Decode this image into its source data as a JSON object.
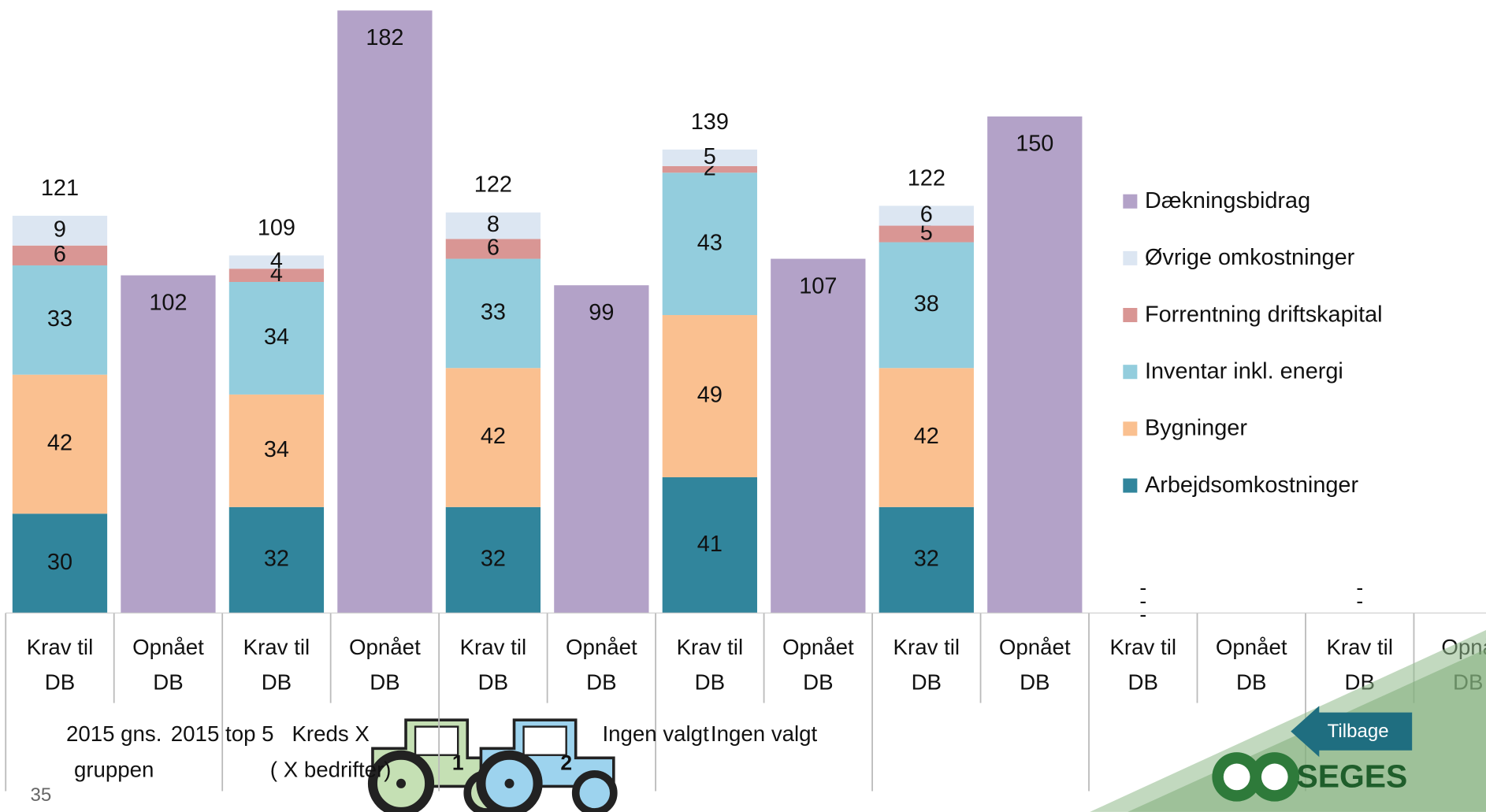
{
  "chart_data": {
    "type": "bar",
    "stacked": true,
    "categories": [
      "Krav til DB",
      "Opnået DB",
      "Krav til DB",
      "Opnået DB",
      "Krav til DB",
      "Opnået DB",
      "Krav til DB",
      "Opnået DB",
      "Krav til DB",
      "Opnået DB",
      "Krav til DB",
      "Opnået DB",
      "Krav til DB",
      "Opnå DB"
    ],
    "series": [
      {
        "name": "Arbejdsomkostninger",
        "color": "#31859c",
        "values": [
          30,
          null,
          32,
          null,
          32,
          null,
          41,
          null,
          32,
          null,
          null,
          null,
          null,
          null
        ],
        "value_labels": [
          null,
          null,
          null,
          null,
          null,
          null,
          null,
          null,
          null,
          null,
          "-",
          null,
          "-",
          null
        ]
      },
      {
        "name": "Bygninger",
        "color": "#fac090",
        "values": [
          42,
          null,
          34,
          null,
          42,
          null,
          49,
          null,
          42,
          null,
          null,
          null,
          null,
          null
        ],
        "value_labels": [
          null,
          null,
          null,
          null,
          null,
          null,
          null,
          null,
          null,
          null,
          "-",
          null,
          "-",
          null
        ]
      },
      {
        "name": "Inventar inkl. energi",
        "color": "#93cddd",
        "values": [
          33,
          null,
          34,
          null,
          33,
          null,
          43,
          null,
          38,
          null,
          null,
          null,
          null,
          null
        ],
        "value_labels": [
          null,
          null,
          null,
          null,
          null,
          null,
          null,
          null,
          null,
          null,
          "-",
          null,
          null,
          null
        ]
      },
      {
        "name": "Forrentning driftskapital",
        "color": "#d99694",
        "values": [
          6,
          null,
          4,
          null,
          6,
          null,
          2,
          null,
          5,
          null,
          null,
          null,
          null,
          null
        ]
      },
      {
        "name": "Øvrige omkostninger",
        "color": "#dce6f2",
        "values": [
          9,
          null,
          4,
          null,
          8,
          null,
          5,
          null,
          6,
          null,
          null,
          null,
          null,
          null
        ]
      },
      {
        "name": "Dækningsbidrag",
        "color": "#b3a2c8",
        "values": [
          null,
          102,
          null,
          182,
          null,
          99,
          null,
          107,
          null,
          150,
          null,
          null,
          null,
          null
        ]
      }
    ],
    "totals": [
      121,
      null,
      109,
      null,
      122,
      null,
      139,
      null,
      122,
      null,
      null,
      null,
      null,
      null
    ],
    "groups": [
      {
        "lines": [
          "2015 gns.",
          "gruppen"
        ]
      },
      {
        "lines": [
          "2015 top 5"
        ]
      },
      {
        "lines": [
          "Kreds X",
          "( X bedrifter)"
        ]
      },
      {
        "icon_label": "1"
      },
      {
        "icon_label": "2"
      },
      {
        "lines": [
          "Ingen valgt"
        ]
      },
      {
        "lines": [
          "Ingen valgt"
        ]
      }
    ]
  },
  "slide_number": "35",
  "button": "Tilbage",
  "logo": "SEGES"
}
